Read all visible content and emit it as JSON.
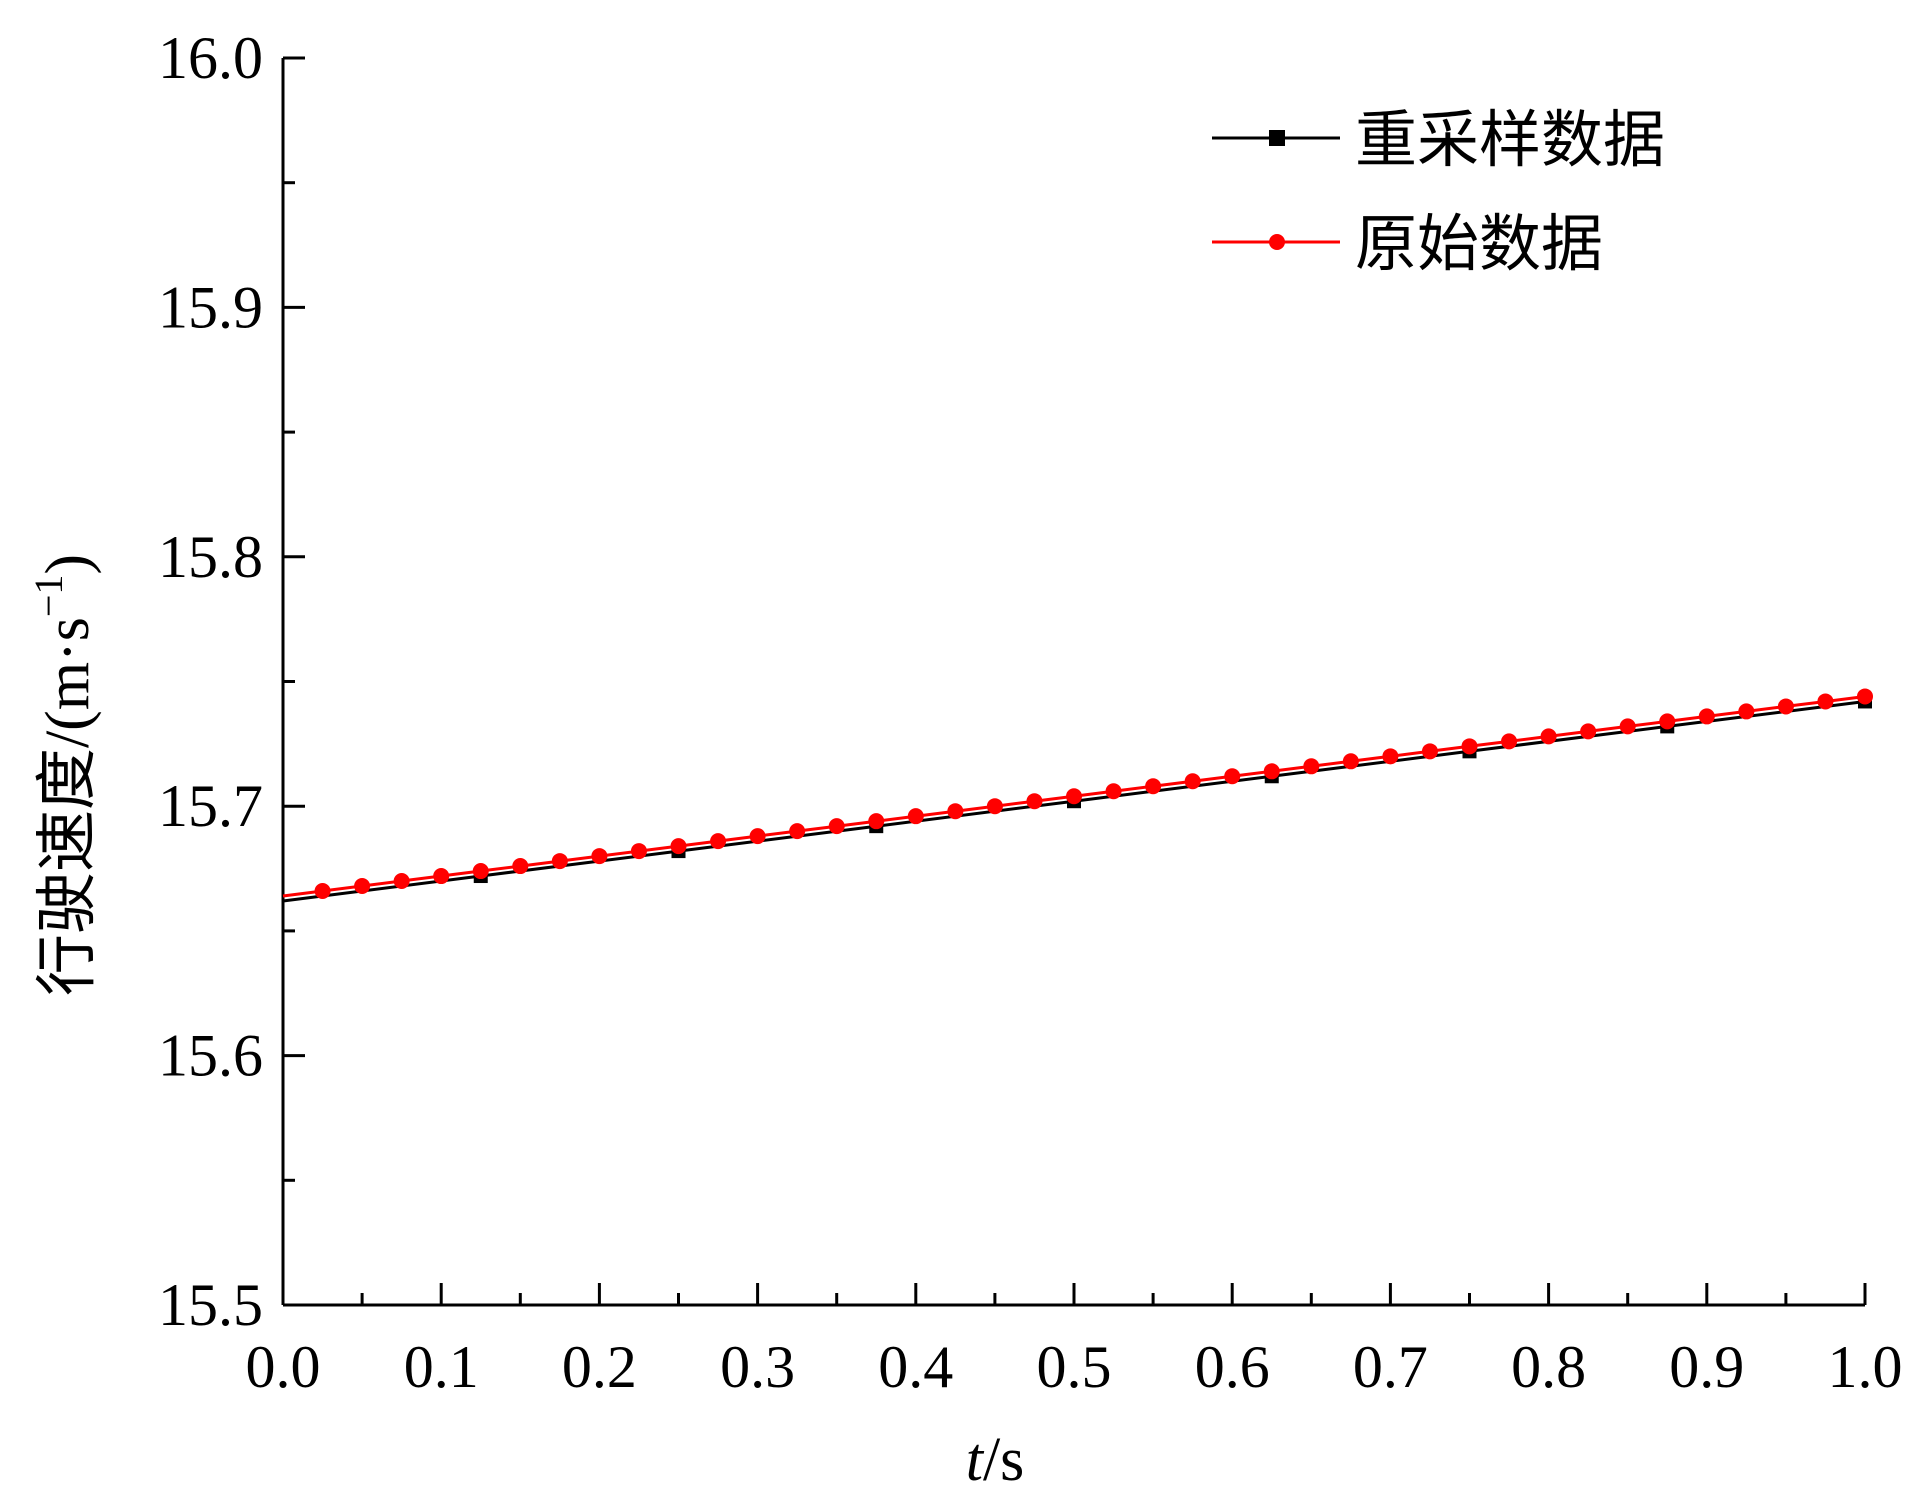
{
  "chart_data": {
    "type": "line",
    "title": "",
    "xlabel_italic": "t",
    "xlabel_rest": "/s",
    "ylabel_cjk": "行驶速度",
    "ylabel_unit": "/(m·s",
    "ylabel_sup": "−1",
    "ylabel_close": ")",
    "xlim": [
      0.0,
      1.0
    ],
    "ylim": [
      15.5,
      16.0
    ],
    "x_ticks": [
      0.0,
      0.1,
      0.2,
      0.3,
      0.4,
      0.5,
      0.6,
      0.7,
      0.8,
      0.9,
      1.0
    ],
    "x_tick_labels": [
      "0.0",
      "0.1",
      "0.2",
      "0.3",
      "0.4",
      "0.5",
      "0.6",
      "0.7",
      "0.8",
      "0.9",
      "1.0"
    ],
    "y_ticks": [
      15.5,
      15.6,
      15.7,
      15.8,
      15.9,
      16.0
    ],
    "y_tick_labels": [
      "15.5",
      "15.6",
      "15.7",
      "15.8",
      "15.9",
      "16.0"
    ],
    "grid": false,
    "legend_position": "top-right",
    "series": [
      {
        "name": "重采样数据",
        "color": "#000000",
        "marker": "square",
        "x": [
          0.0,
          0.125,
          0.25,
          0.375,
          0.5,
          0.625,
          0.75,
          0.875,
          1.0
        ],
        "y": [
          15.662,
          15.672,
          15.682,
          15.692,
          15.702,
          15.712,
          15.722,
          15.732,
          15.742
        ]
      },
      {
        "name": "原始数据",
        "color": "#ff0000",
        "marker": "circle",
        "x": [
          0.0,
          0.025,
          0.05,
          0.075,
          0.1,
          0.125,
          0.15,
          0.175,
          0.2,
          0.225,
          0.25,
          0.275,
          0.3,
          0.325,
          0.35,
          0.375,
          0.4,
          0.425,
          0.45,
          0.475,
          0.5,
          0.525,
          0.55,
          0.575,
          0.6,
          0.625,
          0.65,
          0.675,
          0.7,
          0.725,
          0.75,
          0.775,
          0.8,
          0.825,
          0.85,
          0.875,
          0.9,
          0.925,
          0.95,
          0.975,
          1.0
        ],
        "y": [
          15.664,
          15.666,
          15.668,
          15.67,
          15.672,
          15.674,
          15.676,
          15.678,
          15.68,
          15.682,
          15.684,
          15.686,
          15.688,
          15.69,
          15.692,
          15.694,
          15.696,
          15.698,
          15.7,
          15.702,
          15.704,
          15.706,
          15.708,
          15.71,
          15.712,
          15.714,
          15.716,
          15.718,
          15.72,
          15.722,
          15.724,
          15.726,
          15.728,
          15.73,
          15.732,
          15.734,
          15.736,
          15.738,
          15.74,
          15.742,
          15.744
        ]
      }
    ]
  }
}
